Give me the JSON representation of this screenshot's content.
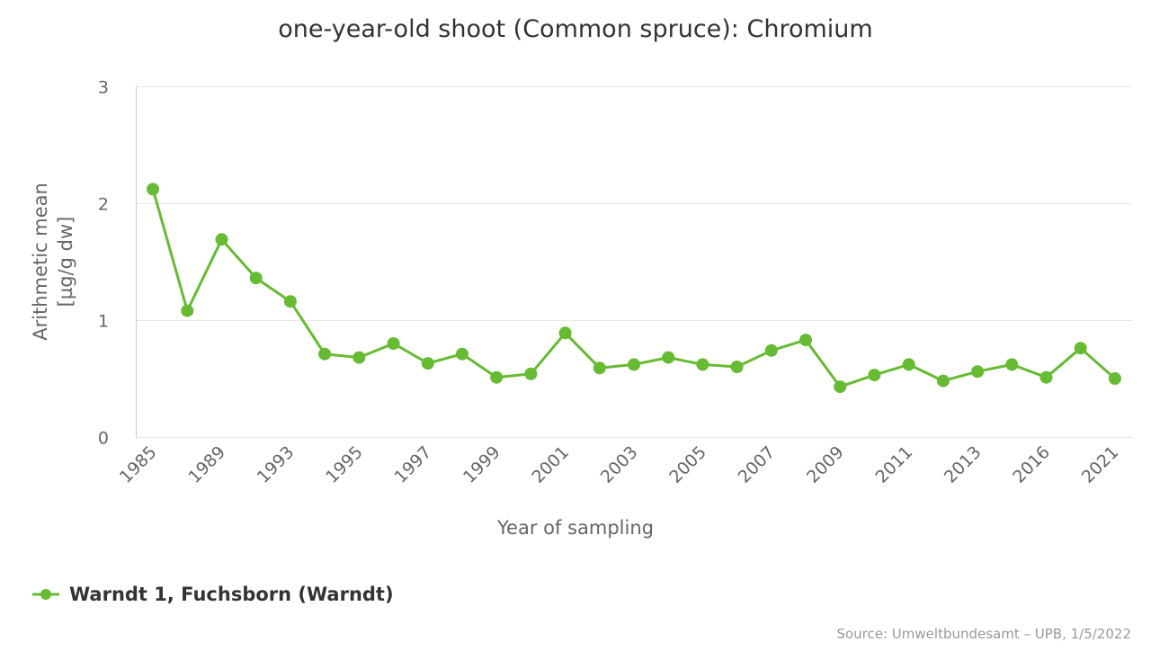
{
  "chart_data": {
    "type": "line",
    "title": "one-year-old shoot (Common spruce): Chromium",
    "xlabel": "Year of sampling",
    "ylabel_lines": [
      "Arithmetic mean",
      "[µg/g dw]"
    ],
    "ylim": [
      0,
      3
    ],
    "y_ticks": [
      "0",
      "1",
      "2",
      "3"
    ],
    "y_tick_values": [
      0,
      1,
      2,
      3
    ],
    "grid": true,
    "x_tick_labels": [
      "1985",
      "1989",
      "1993",
      "1995",
      "1997",
      "1999",
      "2001",
      "2003",
      "2005",
      "2007",
      "2009",
      "2011",
      "2013",
      "2016",
      "2021"
    ],
    "x_tick_label_every": 2,
    "legend_position": "bottom-left",
    "series": [
      {
        "name": "Warndt 1, Fuchsborn (Warndt)",
        "color": "#66bb33",
        "values": [
          2.12,
          1.08,
          1.69,
          1.36,
          1.16,
          0.71,
          0.68,
          0.8,
          0.63,
          0.71,
          0.51,
          0.54,
          0.89,
          0.59,
          0.62,
          0.68,
          0.62,
          0.6,
          0.74,
          0.83,
          0.43,
          0.53,
          0.62,
          0.48,
          0.56,
          0.62,
          0.51,
          0.76,
          0.5
        ]
      }
    ]
  },
  "credits": "Source: Umweltbundesamt – UPB, 1/5/2022"
}
